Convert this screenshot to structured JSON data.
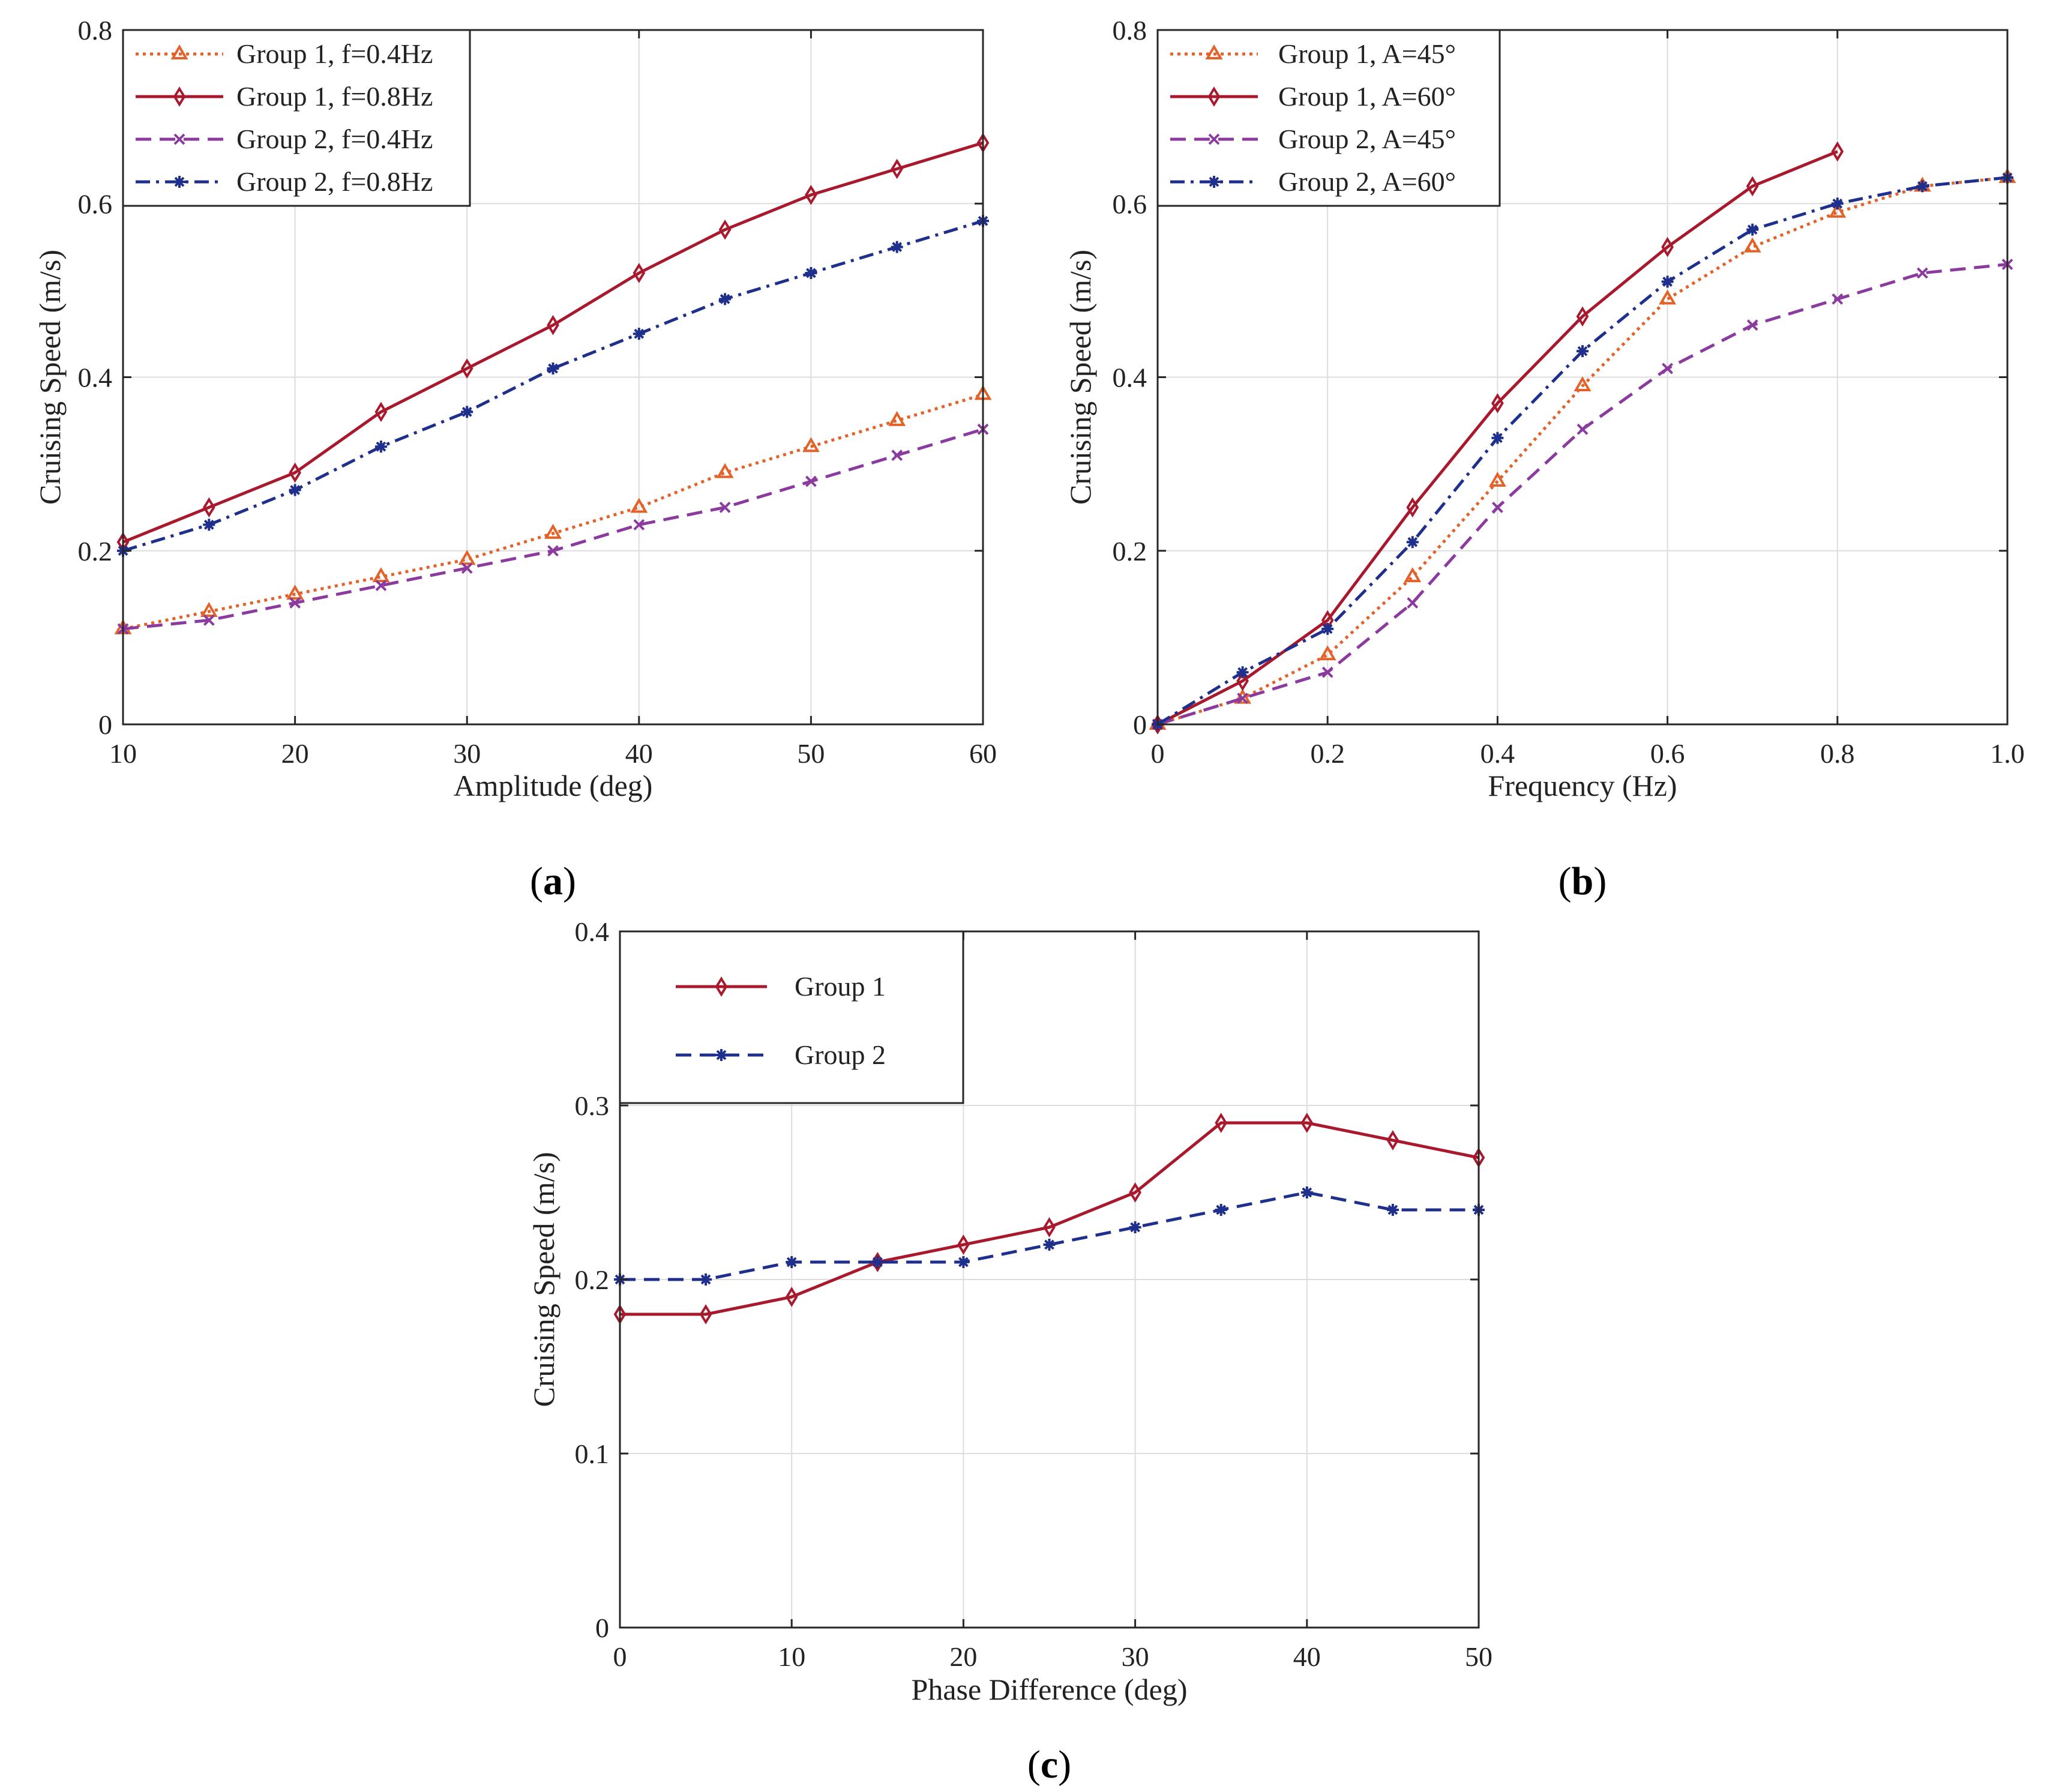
{
  "colors": {
    "orange": "#e2622a",
    "crimson": "#a8192e",
    "purple": "#8b3a9e",
    "navy": "#1f2f8c",
    "grid": "#dddddd",
    "axis": "#262626"
  },
  "chart_data": [
    {
      "id": "a",
      "type": "line",
      "panel_label": "a",
      "panel_label_open": "(",
      "panel_label_close": ")",
      "xlabel": "Amplitude (deg)",
      "ylabel": "Cruising Speed (m/s)",
      "xlim": [
        10,
        60
      ],
      "ylim": [
        0,
        0.8
      ],
      "xticks": [
        10,
        20,
        30,
        40,
        50,
        60
      ],
      "xtick_labels": [
        "10",
        "20",
        "30",
        "40",
        "50",
        "60"
      ],
      "yticks": [
        0,
        0.2,
        0.4,
        0.6,
        0.8
      ],
      "ytick_labels": [
        "0",
        "0.2",
        "0.4",
        "0.6",
        "0.8"
      ],
      "grid": true,
      "legend_position": "top-left",
      "series": [
        {
          "name": "Group 1, f=0.4Hz",
          "color": "orange",
          "marker": "triangle",
          "dash": "dotted",
          "x": [
            10,
            15,
            20,
            25,
            30,
            35,
            40,
            45,
            50,
            55,
            60
          ],
          "y": [
            0.11,
            0.13,
            0.15,
            0.17,
            0.19,
            0.22,
            0.25,
            0.29,
            0.32,
            0.35,
            0.38
          ]
        },
        {
          "name": "Group 1, f=0.8Hz",
          "color": "crimson",
          "marker": "diamond",
          "dash": "solid",
          "x": [
            10,
            15,
            20,
            25,
            30,
            35,
            40,
            45,
            50,
            55,
            60
          ],
          "y": [
            0.21,
            0.25,
            0.29,
            0.36,
            0.41,
            0.46,
            0.52,
            0.57,
            0.61,
            0.64,
            0.67
          ]
        },
        {
          "name": "Group 2, f=0.4Hz",
          "color": "purple",
          "marker": "x",
          "dash": "dashed",
          "x": [
            10,
            15,
            20,
            25,
            30,
            35,
            40,
            45,
            50,
            55,
            60
          ],
          "y": [
            0.11,
            0.12,
            0.14,
            0.16,
            0.18,
            0.2,
            0.23,
            0.25,
            0.28,
            0.31,
            0.34
          ]
        },
        {
          "name": "Group 2, f=0.8Hz",
          "color": "navy",
          "marker": "asterisk",
          "dash": "dashdot",
          "x": [
            10,
            15,
            20,
            25,
            30,
            35,
            40,
            45,
            50,
            55,
            60
          ],
          "y": [
            0.2,
            0.23,
            0.27,
            0.32,
            0.36,
            0.41,
            0.45,
            0.49,
            0.52,
            0.55,
            0.58
          ]
        }
      ]
    },
    {
      "id": "b",
      "type": "line",
      "panel_label": "b",
      "panel_label_open": "(",
      "panel_label_close": ")",
      "xlabel": "Frequency (Hz)",
      "ylabel": "Cruising Speed (m/s)",
      "xlim": [
        0,
        1.0
      ],
      "ylim": [
        0,
        0.8
      ],
      "xticks": [
        0,
        0.2,
        0.4,
        0.6,
        0.8,
        1.0
      ],
      "xtick_labels": [
        "0",
        "0.2",
        "0.4",
        "0.6",
        "0.8",
        "1.0"
      ],
      "yticks": [
        0,
        0.2,
        0.4,
        0.6,
        0.8
      ],
      "ytick_labels": [
        "0",
        "0.2",
        "0.4",
        "0.6",
        "0.8"
      ],
      "grid": true,
      "legend_position": "top-left",
      "series": [
        {
          "name": "Group 1, A=45°",
          "color": "orange",
          "marker": "triangle",
          "dash": "dotted",
          "x": [
            0,
            0.1,
            0.2,
            0.3,
            0.4,
            0.5,
            0.6,
            0.7,
            0.8,
            0.9,
            1.0
          ],
          "y": [
            0,
            0.03,
            0.08,
            0.17,
            0.28,
            0.39,
            0.49,
            0.55,
            0.59,
            0.62,
            0.63
          ]
        },
        {
          "name": "Group 1, A=60°",
          "color": "crimson",
          "marker": "diamond",
          "dash": "solid",
          "x": [
            0,
            0.1,
            0.2,
            0.3,
            0.4,
            0.5,
            0.6,
            0.7,
            0.8
          ],
          "y": [
            0,
            0.05,
            0.12,
            0.25,
            0.37,
            0.47,
            0.55,
            0.62,
            0.66
          ]
        },
        {
          "name": "Group 2, A=45°",
          "color": "purple",
          "marker": "x",
          "dash": "dashed",
          "x": [
            0,
            0.1,
            0.2,
            0.3,
            0.4,
            0.5,
            0.6,
            0.7,
            0.8,
            0.9,
            1.0
          ],
          "y": [
            0,
            0.03,
            0.06,
            0.14,
            0.25,
            0.34,
            0.41,
            0.46,
            0.49,
            0.52,
            0.53
          ]
        },
        {
          "name": "Group 2, A=60°",
          "color": "navy",
          "marker": "asterisk",
          "dash": "dashdot",
          "x": [
            0,
            0.1,
            0.2,
            0.3,
            0.4,
            0.5,
            0.6,
            0.7,
            0.8,
            0.9,
            1.0
          ],
          "y": [
            0,
            0.06,
            0.11,
            0.21,
            0.33,
            0.43,
            0.51,
            0.57,
            0.6,
            0.62,
            0.63
          ]
        }
      ]
    },
    {
      "id": "c",
      "type": "line",
      "panel_label": "c",
      "panel_label_open": "(",
      "panel_label_close": ")",
      "xlabel": "Phase Difference (deg)",
      "ylabel": "Cruising Speed (m/s)",
      "xlim": [
        0,
        50
      ],
      "ylim": [
        0,
        0.4
      ],
      "xticks": [
        0,
        10,
        20,
        30,
        40,
        50
      ],
      "xtick_labels": [
        "0",
        "10",
        "20",
        "30",
        "40",
        "50"
      ],
      "yticks": [
        0,
        0.1,
        0.2,
        0.3,
        0.4
      ],
      "ytick_labels": [
        "0",
        "0.1",
        "0.2",
        "0.3",
        "0.4"
      ],
      "grid": true,
      "legend_position": "top-left",
      "series": [
        {
          "name": "Group 1",
          "color": "crimson",
          "marker": "diamond",
          "dash": "solid",
          "x": [
            0,
            5,
            10,
            15,
            20,
            25,
            30,
            35,
            40,
            45,
            50
          ],
          "y": [
            0.18,
            0.18,
            0.19,
            0.21,
            0.22,
            0.23,
            0.25,
            0.29,
            0.29,
            0.28,
            0.27
          ]
        },
        {
          "name": "Group 2",
          "color": "navy",
          "marker": "asterisk",
          "dash": "dashed",
          "x": [
            0,
            5,
            10,
            15,
            20,
            25,
            30,
            35,
            40,
            45,
            50
          ],
          "y": [
            0.2,
            0.2,
            0.21,
            0.21,
            0.21,
            0.22,
            0.23,
            0.24,
            0.25,
            0.24,
            0.24
          ]
        }
      ]
    }
  ]
}
